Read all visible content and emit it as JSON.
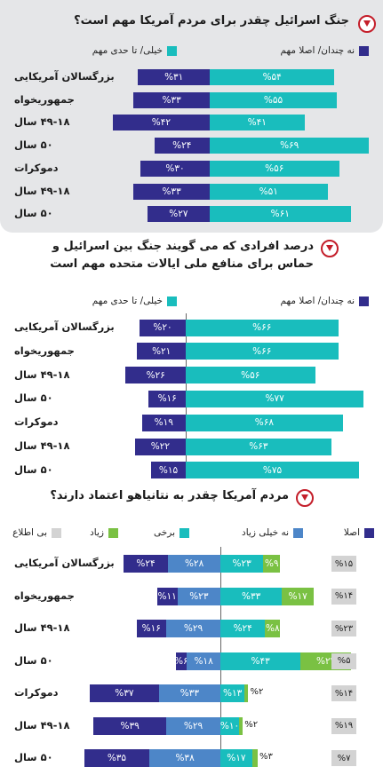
{
  "colors": {
    "dark": "#322d8c",
    "teal": "#19bdbd",
    "blue": "#4d86c8",
    "green": "#7ac143",
    "gray": "#d3d3d3",
    "accent": "#c41e2a"
  },
  "icons": {
    "title_icon": "down-arrow-circle-icon"
  },
  "chart_data": [
    {
      "type": "bar",
      "title": "جنگ اسرائیل چقدر برای مردم آمریکا مهم است؟",
      "categories": [
        "بزرگسالان آمریکایی",
        "جمهوریخواه",
        "۴۹-۱۸ سال",
        "۵۰ سال",
        "دموکرات",
        "۴۹-۱۸ سال",
        "۵۰ سال"
      ],
      "legend": [
        "نه چندان/ اصلا مهم",
        "خیلی/ تا حدی مهم"
      ],
      "series": [
        {
          "name": "خیلی/ تا حدی مهم",
          "color": "#322d8c",
          "values": [
            31,
            33,
            42,
            24,
            30,
            33,
            27
          ],
          "labels": [
            "%۳۱",
            "%۳۳",
            "%۴۲",
            "%۲۴",
            "%۳۰",
            "%۳۳",
            "%۲۷"
          ]
        },
        {
          "name": "نه چندان/ اصلا مهم",
          "color": "#19bdbd",
          "values": [
            54,
            55,
            41,
            69,
            56,
            51,
            61
          ],
          "labels": [
            "%۵۴",
            "%۵۵",
            "%۴۱",
            "%۶۹",
            "%۵۶",
            "%۵۱",
            "%۶۱"
          ]
        }
      ]
    },
    {
      "type": "bar",
      "title": "درصد افرادی که می گویند جنگ بین اسرائیل و حماس برای منافع ملی ایالات متحده مهم است",
      "categories": [
        "بزرگسالان آمریکایی",
        "جمهوریخواه",
        "۴۹-۱۸ سال",
        "۵۰ سال",
        "دموکرات",
        "۴۹-۱۸ سال",
        "۵۰ سال"
      ],
      "legend": [
        "نه چندان/ اصلا مهم",
        "خیلی/ تا حدی مهم"
      ],
      "series": [
        {
          "name": "خیلی/ تا حدی مهم",
          "color": "#322d8c",
          "values": [
            20,
            21,
            26,
            16,
            19,
            22,
            15
          ],
          "labels": [
            "%۲۰",
            "%۲۱",
            "%۲۶",
            "%۱۶",
            "%۱۹",
            "%۲۲",
            "%۱۵"
          ]
        },
        {
          "name": "نه چندان/ اصلا مهم",
          "color": "#19bdbd",
          "values": [
            66,
            66,
            56,
            77,
            68,
            63,
            75
          ],
          "labels": [
            "%۶۶",
            "%۶۶",
            "%۵۶",
            "%۷۷",
            "%۶۸",
            "%۶۳",
            "%۷۵"
          ]
        }
      ]
    },
    {
      "type": "bar",
      "title": "مردم آمریکا چقدر به نتانیاهو اعتماد دارند؟",
      "categories": [
        "بزرگسالان آمریکایی",
        "جمهوریخواه",
        "۴۹-۱۸ سال",
        "۵۰ سال",
        "دموکرات",
        "۴۹-۱۸ سال",
        "۵۰ سال"
      ],
      "legend": [
        "اصلا",
        "نه خیلی زیاد",
        "برخی",
        "زیاد",
        "بی اطلاع"
      ],
      "series": [
        {
          "name": "اصلا",
          "color": "#322d8c",
          "values": [
            24,
            11,
            16,
            6,
            37,
            39,
            35
          ],
          "labels": [
            "%۲۴",
            "%۱۱",
            "%۱۶",
            "%۶",
            "%۳۷",
            "%۳۹",
            "%۳۵"
          ]
        },
        {
          "name": "نه خیلی زیاد",
          "color": "#4d86c8",
          "values": [
            28,
            23,
            29,
            18,
            33,
            29,
            38
          ],
          "labels": [
            "%۲۸",
            "%۲۳",
            "%۲۹",
            "%۱۸",
            "%۳۳",
            "%۲۹",
            "%۳۸"
          ]
        },
        {
          "name": "برخی",
          "color": "#19bdbd",
          "values": [
            23,
            33,
            24,
            43,
            13,
            10,
            17
          ],
          "labels": [
            "%۲۳",
            "%۳۳",
            "%۲۴",
            "%۴۳",
            "%۱۳",
            "%۱۰",
            "%۱۷"
          ]
        },
        {
          "name": "زیاد",
          "color": "#7ac143",
          "values": [
            9,
            17,
            8,
            27,
            2,
            2,
            3
          ],
          "labels": [
            "%۹",
            "%۱۷",
            "%۸",
            "%۲۷",
            "%۲",
            "%۲",
            "%۳"
          ]
        },
        {
          "name": "بی اطلاع",
          "color": "#d3d3d3",
          "values": [
            15,
            14,
            23,
            5,
            14,
            19,
            7
          ],
          "labels": [
            "%۱۵",
            "%۱۴",
            "%۲۳",
            "%۵",
            "%۱۴",
            "%۱۹",
            "%۷"
          ]
        }
      ]
    }
  ]
}
